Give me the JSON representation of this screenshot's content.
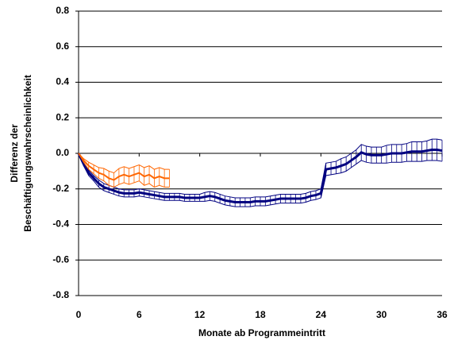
{
  "chart_data": {
    "type": "line",
    "ylabel": [
      "Differenz der",
      "Beschäftigungswahrscheinlichkeit"
    ],
    "xlabel": "Monate ab Programmeintritt",
    "xlim": [
      0,
      36
    ],
    "xticks": [
      0,
      6,
      12,
      18,
      24,
      30,
      36
    ],
    "ylim": [
      -0.8,
      0.8
    ],
    "yticks": [
      -0.8,
      -0.6,
      -0.4,
      -0.2,
      {
        "value": 0,
        "label": "0.0"
      },
      0.2,
      0.4,
      0.6,
      0.8
    ],
    "grid": true,
    "series": [
      {
        "color": "#000080",
        "x": [
          0,
          0.5,
          1,
          1.5,
          2,
          2.5,
          3,
          3.5,
          4,
          4.5,
          5,
          5.5,
          6,
          6.5,
          7,
          7.5,
          8,
          8.5,
          9,
          9.5,
          10,
          10.5,
          11,
          11.5,
          12,
          12.5,
          13,
          13.5,
          14,
          14.5,
          15,
          15.5,
          16,
          16.5,
          17,
          17.5,
          18,
          18.5,
          19,
          19.5,
          20,
          20.5,
          21,
          21.5,
          22,
          22.5,
          23,
          23.5,
          24,
          24.5,
          25,
          25.5,
          26,
          26.5,
          27,
          27.5,
          28,
          28.5,
          29,
          29.5,
          30,
          30.5,
          31,
          31.5,
          32,
          32.5,
          33,
          33.5,
          34,
          34.5,
          35,
          35.5,
          36
        ],
        "values": [
          0,
          -0.06,
          -0.11,
          -0.14,
          -0.17,
          -0.19,
          -0.2,
          -0.21,
          -0.22,
          -0.225,
          -0.225,
          -0.225,
          -0.22,
          -0.225,
          -0.23,
          -0.235,
          -0.24,
          -0.245,
          -0.245,
          -0.245,
          -0.245,
          -0.25,
          -0.25,
          -0.25,
          -0.25,
          -0.245,
          -0.24,
          -0.245,
          -0.255,
          -0.265,
          -0.27,
          -0.275,
          -0.275,
          -0.275,
          -0.275,
          -0.27,
          -0.27,
          -0.27,
          -0.265,
          -0.26,
          -0.255,
          -0.255,
          -0.255,
          -0.255,
          -0.255,
          -0.25,
          -0.24,
          -0.235,
          -0.225,
          -0.09,
          -0.085,
          -0.08,
          -0.07,
          -0.06,
          -0.04,
          -0.02,
          0.005,
          -0.005,
          -0.01,
          -0.01,
          -0.01,
          -0.005,
          0,
          0,
          0,
          0.005,
          0.01,
          0.01,
          0.01,
          0.015,
          0.02,
          0.02,
          0.015
        ],
        "error": [
          0,
          0.01,
          0.015,
          0.015,
          0.02,
          0.02,
          0.02,
          0.02,
          0.02,
          0.02,
          0.02,
          0.02,
          0.02,
          0.02,
          0.02,
          0.02,
          0.02,
          0.02,
          0.02,
          0.02,
          0.02,
          0.02,
          0.02,
          0.02,
          0.02,
          0.025,
          0.025,
          0.025,
          0.025,
          0.025,
          0.025,
          0.025,
          0.025,
          0.025,
          0.025,
          0.025,
          0.025,
          0.025,
          0.025,
          0.025,
          0.025,
          0.025,
          0.025,
          0.025,
          0.025,
          0.025,
          0.025,
          0.025,
          0.025,
          0.035,
          0.035,
          0.035,
          0.04,
          0.04,
          0.04,
          0.04,
          0.045,
          0.045,
          0.045,
          0.045,
          0.045,
          0.05,
          0.05,
          0.05,
          0.05,
          0.05,
          0.055,
          0.055,
          0.055,
          0.055,
          0.06,
          0.06,
          0.06
        ]
      },
      {
        "color": "#ff6600",
        "x": [
          0,
          0.5,
          1,
          1.5,
          2,
          2.5,
          3,
          3.5,
          4,
          4.5,
          5,
          5.5,
          6,
          6.5,
          7,
          7.5,
          8,
          8.5,
          9
        ],
        "values": [
          0,
          -0.04,
          -0.07,
          -0.09,
          -0.11,
          -0.12,
          -0.14,
          -0.15,
          -0.13,
          -0.12,
          -0.13,
          -0.12,
          -0.11,
          -0.13,
          -0.12,
          -0.14,
          -0.13,
          -0.14,
          -0.14
        ],
        "error": [
          0,
          0.01,
          0.02,
          0.025,
          0.03,
          0.035,
          0.04,
          0.04,
          0.045,
          0.045,
          0.045,
          0.045,
          0.045,
          0.05,
          0.05,
          0.05,
          0.05,
          0.05,
          0.05
        ]
      }
    ]
  }
}
